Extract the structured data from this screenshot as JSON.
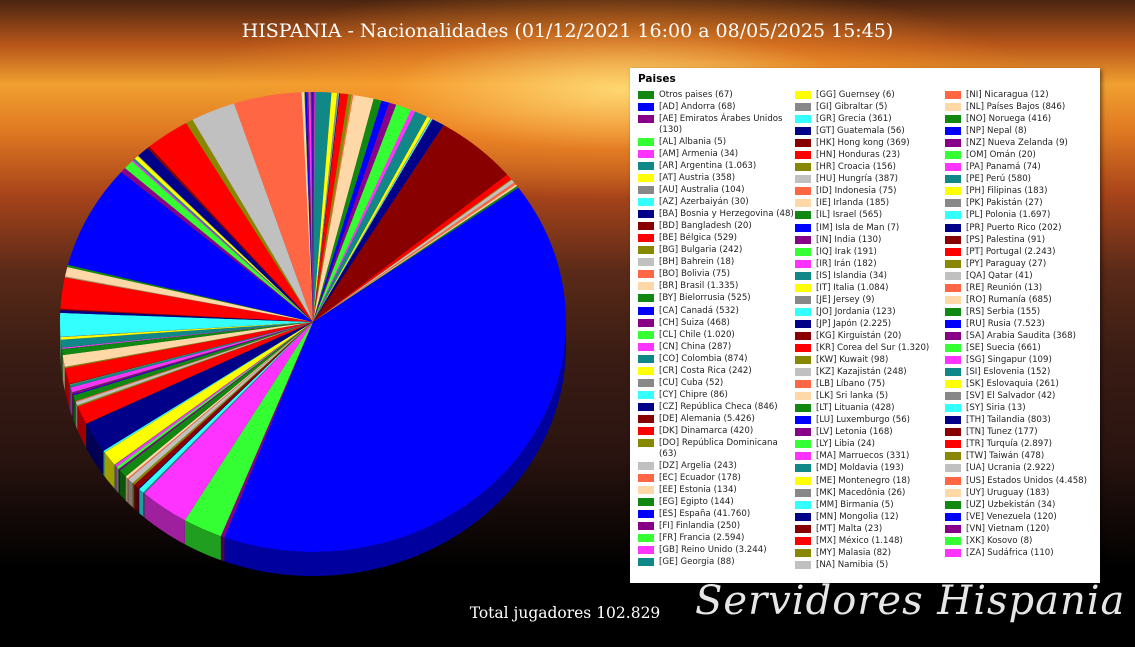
{
  "title": "HISPANIA - Nacionalidades (01/12/2021 16:00 a 08/05/2025 15:45)",
  "total": "Total jugadores 102.829",
  "logo": "Servidores Hispania",
  "legend_title": "Paises",
  "chart_data": {
    "type": "pie",
    "title": "HISPANIA - Nacionalidades (01/12/2021 16:00 a 08/05/2025 15:45)",
    "legend_title": "Paises",
    "legend_position": "right",
    "slices": [
      {
        "label": "Otros paises (67)",
        "value": 67,
        "color": "#118811"
      },
      {
        "label": "[AD] Andorra (68)",
        "value": 68,
        "color": "#0000ff"
      },
      {
        "label": "[AE] Emiratos Árabes Unidos (130)",
        "value": 130,
        "color": "#880088"
      },
      {
        "label": "[AL] Albania (5)",
        "value": 5,
        "color": "#33ff33"
      },
      {
        "label": "[AM] Armenia (34)",
        "value": 34,
        "color": "#ff33ff"
      },
      {
        "label": "[AR] Argentina (1.063)",
        "value": 1063,
        "color": "#118888"
      },
      {
        "label": "[AT] Austria (358)",
        "value": 358,
        "color": "#ffff00"
      },
      {
        "label": "[AU] Australia (104)",
        "value": 104,
        "color": "#888888"
      },
      {
        "label": "[AZ] Azerbaiyán (30)",
        "value": 30,
        "color": "#33ffff"
      },
      {
        "label": "[BA] Bosnia y Herzegovina (48)",
        "value": 48,
        "color": "#000088"
      },
      {
        "label": "[BD] Bangladesh (20)",
        "value": 20,
        "color": "#880000"
      },
      {
        "label": "[BE] Bélgica (529)",
        "value": 529,
        "color": "#ff0000"
      },
      {
        "label": "[BG] Bulgaria (242)",
        "value": 242,
        "color": "#888800"
      },
      {
        "label": "[BH] Bahrein (18)",
        "value": 18,
        "color": "#c0c0c0"
      },
      {
        "label": "[BO] Bolivia (75)",
        "value": 75,
        "color": "#ff6644"
      },
      {
        "label": "[BR] Brasil (1.335)",
        "value": 1335,
        "color": "#ffd8a8"
      },
      {
        "label": "[BY] Bielorrusia (525)",
        "value": 525,
        "color": "#118811"
      },
      {
        "label": "[CA] Canadá (532)",
        "value": 532,
        "color": "#0000ff"
      },
      {
        "label": "[CH] Suiza (468)",
        "value": 468,
        "color": "#880088"
      },
      {
        "label": "[CL] Chile (1.020)",
        "value": 1020,
        "color": "#33ff33"
      },
      {
        "label": "[CN] China (287)",
        "value": 287,
        "color": "#ff33ff"
      },
      {
        "label": "[CO] Colombia (874)",
        "value": 874,
        "color": "#118888"
      },
      {
        "label": "[CR] Costa Rica (242)",
        "value": 242,
        "color": "#ffff00"
      },
      {
        "label": "[CU] Cuba (52)",
        "value": 52,
        "color": "#888888"
      },
      {
        "label": "[CY] Chipre (86)",
        "value": 86,
        "color": "#33ffff"
      },
      {
        "label": "[CZ] República Checa (846)",
        "value": 846,
        "color": "#000088"
      },
      {
        "label": "[DE] Alemania (5.426)",
        "value": 5426,
        "color": "#880000"
      },
      {
        "label": "[DK] Dinamarca (420)",
        "value": 420,
        "color": "#ff0000"
      },
      {
        "label": "[DO] República Dominicana (63)",
        "value": 63,
        "color": "#888800"
      },
      {
        "label": "[DZ] Argelia (243)",
        "value": 243,
        "color": "#c0c0c0"
      },
      {
        "label": "[EC] Ecuador (178)",
        "value": 178,
        "color": "#ff6644"
      },
      {
        "label": "[EE] Estonia (134)",
        "value": 134,
        "color": "#ffd8a8"
      },
      {
        "label": "[EG] Egipto (144)",
        "value": 144,
        "color": "#118811"
      },
      {
        "label": "[ES] España (41.760)",
        "value": 41760,
        "color": "#0000ff"
      },
      {
        "label": "[FI] Finlandia (250)",
        "value": 250,
        "color": "#880088"
      },
      {
        "label": "[FR] Francia (2.594)",
        "value": 2594,
        "color": "#33ff33"
      },
      {
        "label": "[GB] Reino Unido (3.244)",
        "value": 3244,
        "color": "#ff33ff"
      },
      {
        "label": "[GE] Georgia (88)",
        "value": 88,
        "color": "#118888"
      },
      {
        "label": "[GG] Guernsey (6)",
        "value": 6,
        "color": "#ffff00"
      },
      {
        "label": "[GI] Gibraltar (5)",
        "value": 5,
        "color": "#888888"
      },
      {
        "label": "[GR] Grecia (361)",
        "value": 361,
        "color": "#33ffff"
      },
      {
        "label": "[GT] Guatemala (56)",
        "value": 56,
        "color": "#000088"
      },
      {
        "label": "[HK] Hong kong (369)",
        "value": 369,
        "color": "#880000"
      },
      {
        "label": "[HN] Honduras (23)",
        "value": 23,
        "color": "#ff0000"
      },
      {
        "label": "[HR] Croacia (156)",
        "value": 156,
        "color": "#888800"
      },
      {
        "label": "[HU] Hungría (387)",
        "value": 387,
        "color": "#c0c0c0"
      },
      {
        "label": "[ID] Indonesia (75)",
        "value": 75,
        "color": "#ff6644"
      },
      {
        "label": "[IE] Irlanda (185)",
        "value": 185,
        "color": "#ffd8a8"
      },
      {
        "label": "[IL] Israel (565)",
        "value": 565,
        "color": "#118811"
      },
      {
        "label": "[IM] Isla de Man (7)",
        "value": 7,
        "color": "#0000ff"
      },
      {
        "label": "[IN] India (130)",
        "value": 130,
        "color": "#880088"
      },
      {
        "label": "[IQ] Irak (191)",
        "value": 191,
        "color": "#33ff33"
      },
      {
        "label": "[IR] Irán (182)",
        "value": 182,
        "color": "#ff33ff"
      },
      {
        "label": "[IS] Islandia (34)",
        "value": 34,
        "color": "#118888"
      },
      {
        "label": "[IT] Italia (1.084)",
        "value": 1084,
        "color": "#ffff00"
      },
      {
        "label": "[JE] Jersey (9)",
        "value": 9,
        "color": "#888888"
      },
      {
        "label": "[JO] Jordania (123)",
        "value": 123,
        "color": "#33ffff"
      },
      {
        "label": "[JP] Japón (2.225)",
        "value": 2225,
        "color": "#000088"
      },
      {
        "label": "[KG] Kirguistán (20)",
        "value": 20,
        "color": "#880000"
      },
      {
        "label": "[KR] Corea del Sur (1.320)",
        "value": 1320,
        "color": "#ff0000"
      },
      {
        "label": "[KW] Kuwait (98)",
        "value": 98,
        "color": "#888800"
      },
      {
        "label": "[KZ] Kazajistán (248)",
        "value": 248,
        "color": "#c0c0c0"
      },
      {
        "label": "[LB] Líbano (75)",
        "value": 75,
        "color": "#ff6644"
      },
      {
        "label": "[LK] Sri lanka (5)",
        "value": 5,
        "color": "#ffd8a8"
      },
      {
        "label": "[LT] Lituania (428)",
        "value": 428,
        "color": "#118811"
      },
      {
        "label": "[LU] Luxemburgo (56)",
        "value": 56,
        "color": "#0000ff"
      },
      {
        "label": "[LV] Letonia (168)",
        "value": 168,
        "color": "#880088"
      },
      {
        "label": "[LY] Libia (24)",
        "value": 24,
        "color": "#33ff33"
      },
      {
        "label": "[MA] Marruecos (331)",
        "value": 331,
        "color": "#ff33ff"
      },
      {
        "label": "[MD] Moldavia (193)",
        "value": 193,
        "color": "#118888"
      },
      {
        "label": "[ME] Montenegro (18)",
        "value": 18,
        "color": "#ffff00"
      },
      {
        "label": "[MK] Macedônia (26)",
        "value": 26,
        "color": "#888888"
      },
      {
        "label": "[MM] Birmania (5)",
        "value": 5,
        "color": "#33ffff"
      },
      {
        "label": "[MN] Mongolia (12)",
        "value": 12,
        "color": "#000088"
      },
      {
        "label": "[MT] Malta (23)",
        "value": 23,
        "color": "#880000"
      },
      {
        "label": "[MX] México (1.148)",
        "value": 1148,
        "color": "#ff0000"
      },
      {
        "label": "[MY] Malasia (82)",
        "value": 82,
        "color": "#888800"
      },
      {
        "label": "[NA] Namibia (5)",
        "value": 5,
        "color": "#c0c0c0"
      },
      {
        "label": "[NI] Nicaragua (12)",
        "value": 12,
        "color": "#ff6644"
      },
      {
        "label": "[NL] Países Bajos (846)",
        "value": 846,
        "color": "#ffd8a8"
      },
      {
        "label": "[NO] Noruega (416)",
        "value": 416,
        "color": "#118811"
      },
      {
        "label": "[NP] Nepal (8)",
        "value": 8,
        "color": "#0000ff"
      },
      {
        "label": "[NZ] Nueva Zelanda (9)",
        "value": 9,
        "color": "#880088"
      },
      {
        "label": "[OM] Omán (20)",
        "value": 20,
        "color": "#33ff33"
      },
      {
        "label": "[PA] Panamá (74)",
        "value": 74,
        "color": "#ff33ff"
      },
      {
        "label": "[PE] Perú (580)",
        "value": 580,
        "color": "#118888"
      },
      {
        "label": "[PH] Filipinas (183)",
        "value": 183,
        "color": "#ffff00"
      },
      {
        "label": "[PK] Pakistán (27)",
        "value": 27,
        "color": "#888888"
      },
      {
        "label": "[PL] Polonia (1.697)",
        "value": 1697,
        "color": "#33ffff"
      },
      {
        "label": "[PR] Puerto Rico (202)",
        "value": 202,
        "color": "#000088"
      },
      {
        "label": "[PS] Palestina (91)",
        "value": 91,
        "color": "#880000"
      },
      {
        "label": "[PT] Portugal (2.243)",
        "value": 2243,
        "color": "#ff0000"
      },
      {
        "label": "[PY] Paraguay (27)",
        "value": 27,
        "color": "#888800"
      },
      {
        "label": "[QA] Qatar (41)",
        "value": 41,
        "color": "#c0c0c0"
      },
      {
        "label": "[RE] Reunión (13)",
        "value": 13,
        "color": "#ff6644"
      },
      {
        "label": "[RO] Rumanía (685)",
        "value": 685,
        "color": "#ffd8a8"
      },
      {
        "label": "[RS] Serbia (155)",
        "value": 155,
        "color": "#118811"
      },
      {
        "label": "[RU] Rusia (7.523)",
        "value": 7523,
        "color": "#0000ff"
      },
      {
        "label": "[SA] Arabia Saudita (368)",
        "value": 368,
        "color": "#880088"
      },
      {
        "label": "[SE] Suecia (661)",
        "value": 661,
        "color": "#33ff33"
      },
      {
        "label": "[SG] Singapur (109)",
        "value": 109,
        "color": "#ff33ff"
      },
      {
        "label": "[SI] Eslovenia (152)",
        "value": 152,
        "color": "#118888"
      },
      {
        "label": "[SK] Eslovaquia (261)",
        "value": 261,
        "color": "#ffff00"
      },
      {
        "label": "[SV] El Salvador (42)",
        "value": 42,
        "color": "#888888"
      },
      {
        "label": "[SY] Siria (13)",
        "value": 13,
        "color": "#33ffff"
      },
      {
        "label": "[TH] Tailandia (803)",
        "value": 803,
        "color": "#000088"
      },
      {
        "label": "[TN] Tunez (177)",
        "value": 177,
        "color": "#880000"
      },
      {
        "label": "[TR] Turquía (2.897)",
        "value": 2897,
        "color": "#ff0000"
      },
      {
        "label": "[TW] Taiwán (478)",
        "value": 478,
        "color": "#888800"
      },
      {
        "label": "[UA] Ucrania (2.922)",
        "value": 2922,
        "color": "#c0c0c0"
      },
      {
        "label": "[US] Estados Unidos (4.458)",
        "value": 4458,
        "color": "#ff6644"
      },
      {
        "label": "[UY] Uruguay (183)",
        "value": 183,
        "color": "#ffd8a8"
      },
      {
        "label": "[UZ] Uzbekistán (34)",
        "value": 34,
        "color": "#118811"
      },
      {
        "label": "[VE] Venezuela (120)",
        "value": 120,
        "color": "#0000ff"
      },
      {
        "label": "[VN] Vietnam (120)",
        "value": 120,
        "color": "#880088"
      },
      {
        "label": "[XK] Kosovo (8)",
        "value": 8,
        "color": "#33ff33"
      },
      {
        "label": "[ZA] Sudáfrica (110)",
        "value": 110,
        "color": "#ff33ff"
      }
    ]
  }
}
